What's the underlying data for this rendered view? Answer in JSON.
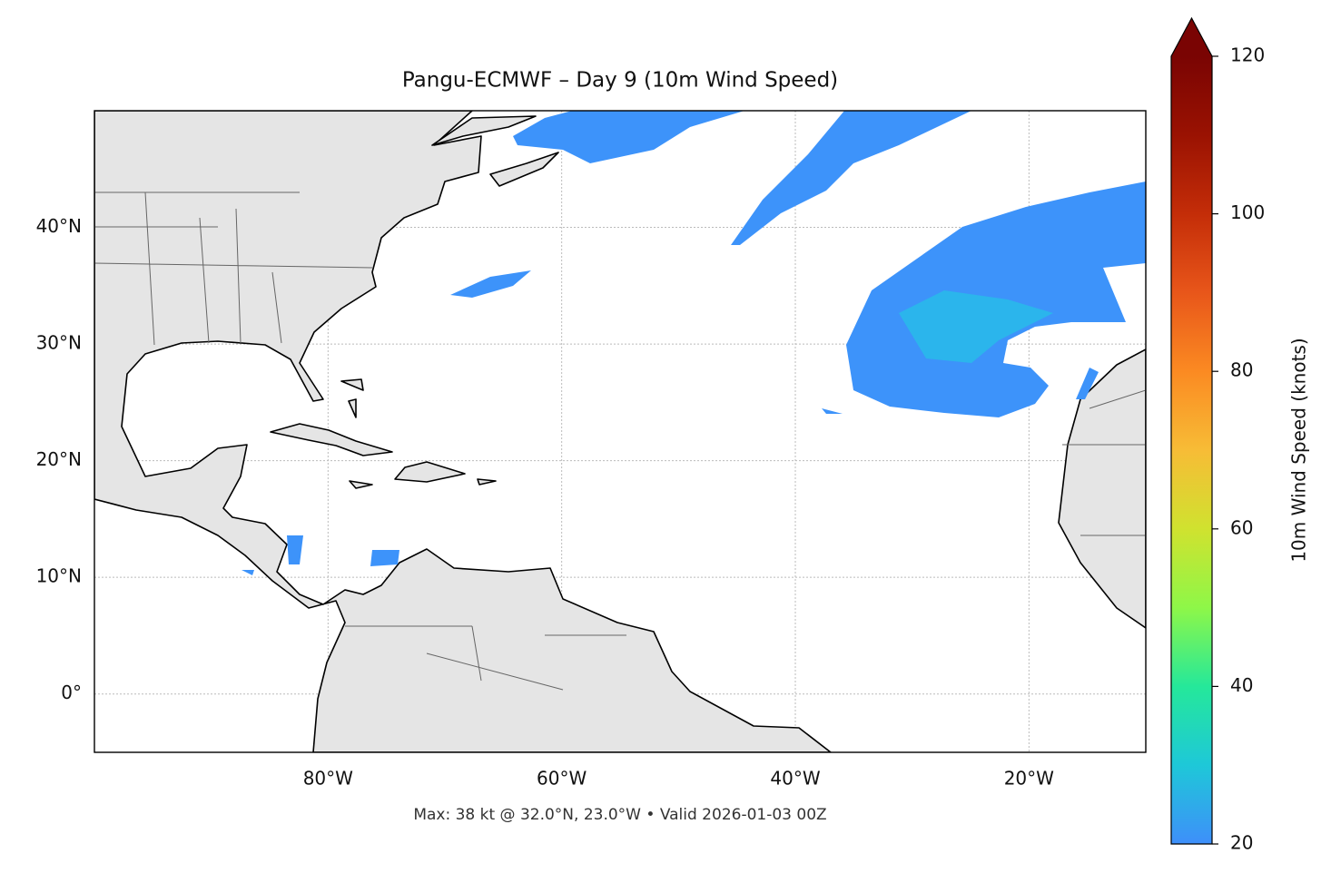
{
  "chart_data": {
    "type": "map",
    "title": "Pangu-ECMWF – Day 9 (10m Wind Speed)",
    "footer": "Max: 38 kt @ 32.0°N, 23.0°W • Valid 2026-01-03 00Z",
    "xlim": [
      -100,
      -10
    ],
    "ylim": [
      -5,
      50
    ],
    "xticks": [
      {
        "value": -80,
        "label": "80°W"
      },
      {
        "value": -60,
        "label": "60°W"
      },
      {
        "value": -40,
        "label": "40°W"
      },
      {
        "value": -20,
        "label": "20°W"
      }
    ],
    "yticks": [
      {
        "value": 0,
        "label": "0°"
      },
      {
        "value": 10,
        "label": "10°N"
      },
      {
        "value": 20,
        "label": "20°N"
      },
      {
        "value": 30,
        "label": "30°N"
      },
      {
        "value": 40,
        "label": "40°N"
      }
    ],
    "grid": true,
    "colorbar": {
      "label": "10m Wind Speed (knots)",
      "lim": [
        20,
        120
      ],
      "ticks": [
        20,
        40,
        60,
        80,
        100,
        120
      ],
      "colormap": "turbo",
      "extend": "max"
    }
  }
}
